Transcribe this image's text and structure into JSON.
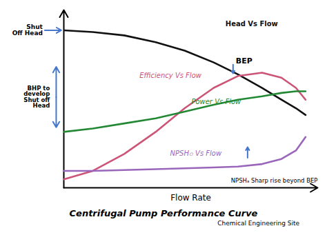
{
  "chart_data": {
    "type": "line",
    "title": "Centrifugal Pump Performance Curve",
    "subtitle": "Chemical Engineering Site",
    "x_label": "Flow Rate",
    "x": [
      0.0,
      0.12,
      0.25,
      0.38,
      0.5,
      0.62,
      0.72,
      0.82,
      0.9,
      0.96,
      1.0
    ],
    "series": [
      {
        "name": "Head Vs Flow",
        "color": "#111111",
        "values": [
          0.93,
          0.92,
          0.9,
          0.86,
          0.81,
          0.74,
          0.67,
          0.59,
          0.52,
          0.47,
          0.43
        ]
      },
      {
        "name": "Efficiency Vs Flow",
        "color": "#cc5577",
        "values": [
          0.05,
          0.1,
          0.2,
          0.33,
          0.47,
          0.59,
          0.66,
          0.68,
          0.65,
          0.59,
          0.52
        ]
      },
      {
        "name": "Power Vs Flow",
        "color": "#228833",
        "values": [
          0.33,
          0.35,
          0.38,
          0.41,
          0.45,
          0.49,
          0.52,
          0.54,
          0.56,
          0.57,
          0.57
        ]
      },
      {
        "name": "NPSH၀ Vs Flow",
        "color": "#9966bb",
        "values": [
          0.1,
          0.1,
          0.105,
          0.11,
          0.115,
          0.12,
          0.125,
          0.14,
          0.17,
          0.22,
          0.3
        ]
      }
    ],
    "annotations": [
      {
        "text": "BEP",
        "x": 0.7,
        "y": 0.67
      },
      {
        "text": "NPSHₐ Sharp rise beyond BEP",
        "x": 0.76,
        "y": 0.24
      },
      {
        "text": "Shut\nOff Head"
      },
      {
        "text": "BHP to\ndevelop\nShut off\nHead"
      }
    ],
    "xlim": [
      0.0,
      1.05
    ],
    "ylim": [
      0.0,
      1.05
    ],
    "tick_labels": false
  }
}
